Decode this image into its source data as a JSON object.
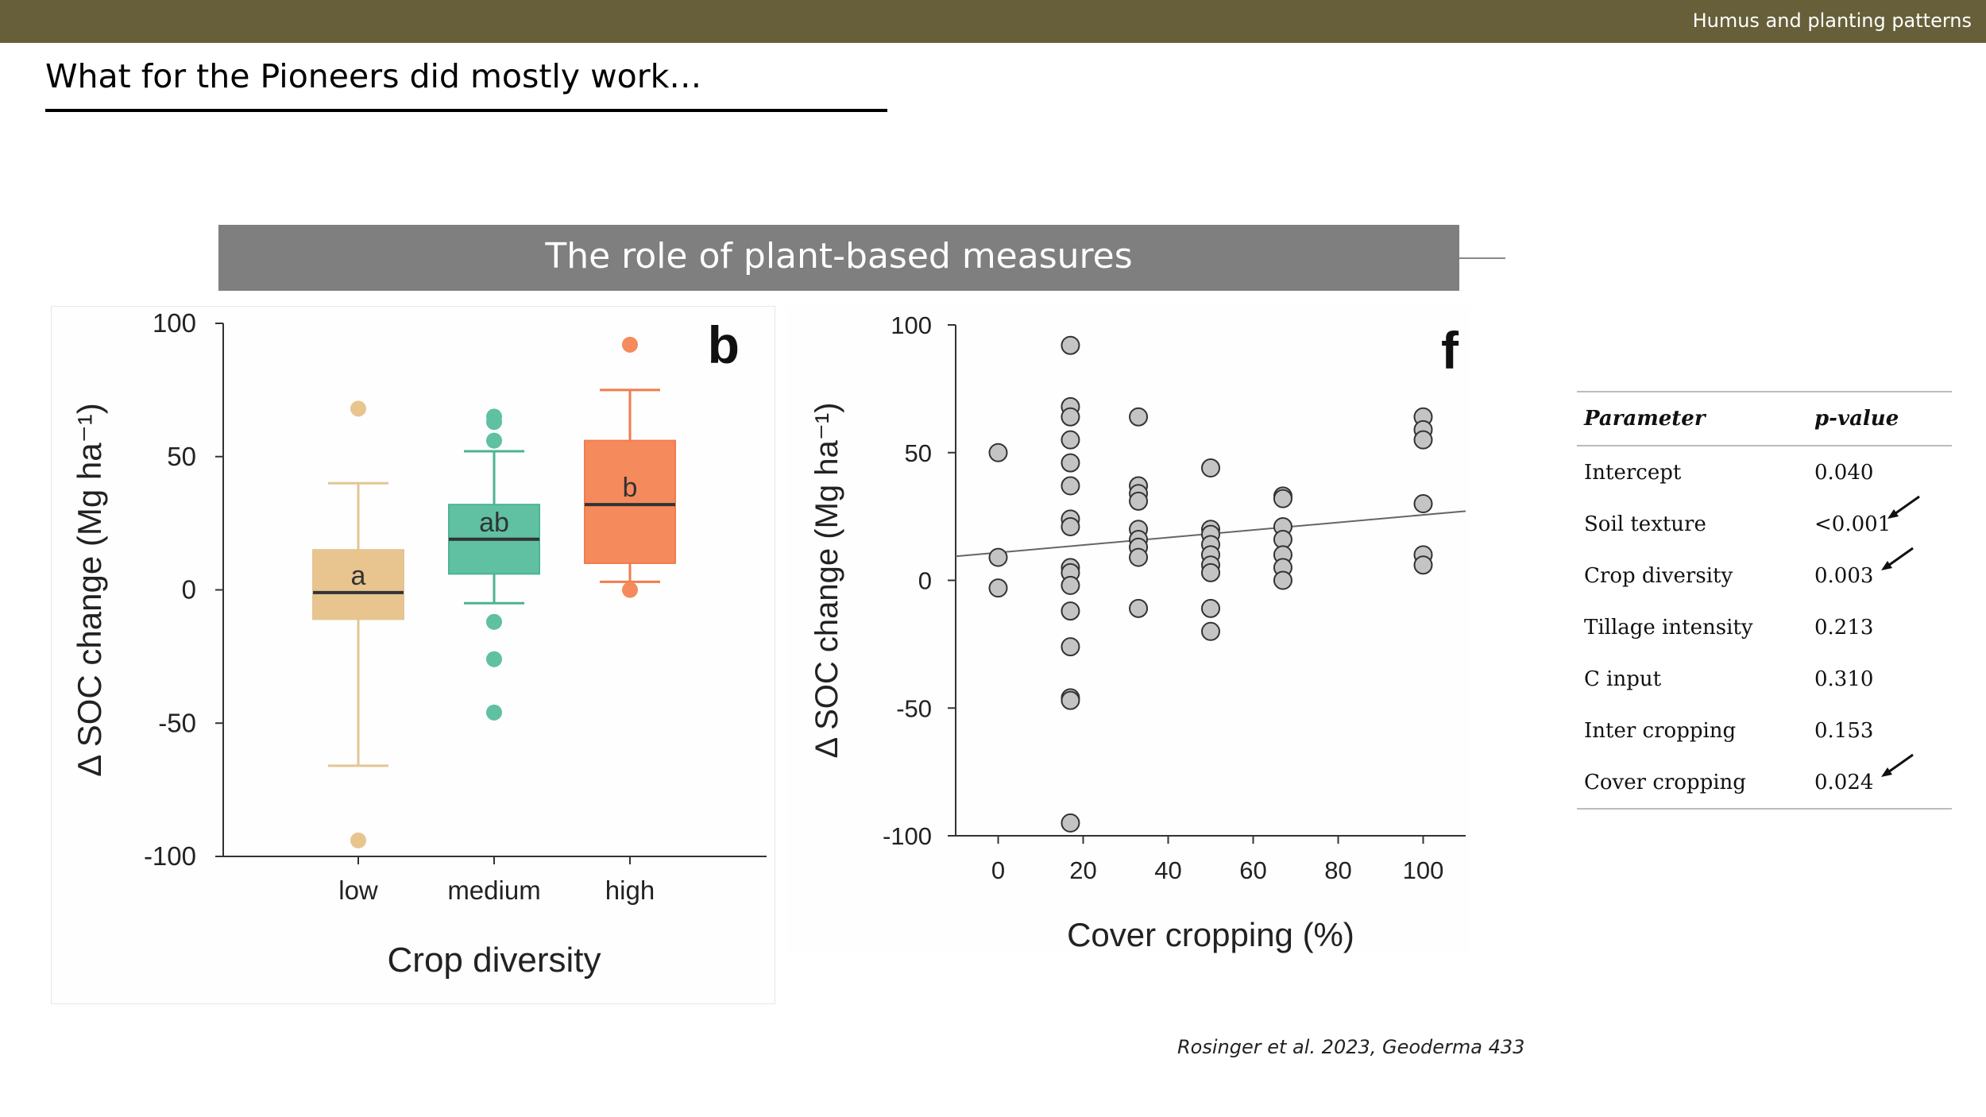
{
  "header": {
    "section_title": "Humus and planting patterns"
  },
  "slide": {
    "heading": "What for the Pioneers did mostly work…",
    "banner": "The role of plant-based measures",
    "citation": "Rosinger et al. 2023, Geoderma 433"
  },
  "colors": {
    "topbar": "#675f39",
    "banner": "#7f7f7f",
    "low": "#e8c48f",
    "medium": "#5fc0a2",
    "high": "#f58a5c",
    "points": "#c4c4c4"
  },
  "chart_data": [
    {
      "type": "boxplot",
      "panel_label": "b",
      "xlabel": "Crop diversity",
      "ylabel": "Δ SOC change (Mg ha⁻¹)",
      "ylim": [
        -100,
        100
      ],
      "yticks": [
        100,
        50,
        0,
        -50,
        -100
      ],
      "categories": [
        "low",
        "medium",
        "high"
      ],
      "boxes": [
        {
          "category": "low",
          "q1": -11,
          "median": -1,
          "q3": 15,
          "whisker_low": -66,
          "whisker_high": 40,
          "outliers": [
            68,
            -94
          ],
          "letter": "a",
          "color": "#e8c48f",
          "median_color": "#333333",
          "whisker_color": "#e3c594"
        },
        {
          "category": "medium",
          "q1": 6,
          "median": 19,
          "q3": 32,
          "whisker_low": -5,
          "whisker_high": 52,
          "outliers": [
            65,
            63,
            56,
            -12,
            -26,
            -46
          ],
          "letter": "ab",
          "color": "#5fc0a2",
          "median_color": "#333333",
          "whisker_color": "#4db393"
        },
        {
          "category": "high",
          "q1": 10,
          "median": 32,
          "q3": 56,
          "whisker_low": 3,
          "whisker_high": 75,
          "outliers": [
            92,
            0
          ],
          "letter": "b",
          "color": "#f58a5c",
          "median_color": "#333333",
          "whisker_color": "#f07c4e"
        }
      ]
    },
    {
      "type": "scatter",
      "panel_label": "f",
      "xlabel": "Cover cropping (%)",
      "ylabel": "Δ SOC change (Mg ha⁻¹)",
      "xlim": [
        -10,
        110
      ],
      "ylim": [
        -100,
        100
      ],
      "xticks": [
        0,
        20,
        40,
        60,
        80,
        100
      ],
      "yticks": [
        100,
        50,
        0,
        -50,
        -100
      ],
      "points": [
        [
          0,
          50
        ],
        [
          0,
          9
        ],
        [
          0,
          -3
        ],
        [
          17,
          92
        ],
        [
          17,
          68
        ],
        [
          17,
          64
        ],
        [
          17,
          55
        ],
        [
          17,
          46
        ],
        [
          17,
          37
        ],
        [
          17,
          24
        ],
        [
          17,
          21
        ],
        [
          17,
          5
        ],
        [
          17,
          3
        ],
        [
          17,
          -2
        ],
        [
          17,
          -12
        ],
        [
          17,
          -26
        ],
        [
          17,
          -46
        ],
        [
          17,
          -47
        ],
        [
          17,
          -95
        ],
        [
          33,
          64
        ],
        [
          33,
          37
        ],
        [
          33,
          34
        ],
        [
          33,
          31
        ],
        [
          33,
          20
        ],
        [
          33,
          16
        ],
        [
          33,
          13
        ],
        [
          33,
          9
        ],
        [
          33,
          -11
        ],
        [
          50,
          44
        ],
        [
          50,
          20
        ],
        [
          50,
          18
        ],
        [
          50,
          14
        ],
        [
          50,
          10
        ],
        [
          50,
          6
        ],
        [
          50,
          3
        ],
        [
          50,
          -11
        ],
        [
          50,
          -20
        ],
        [
          67,
          33
        ],
        [
          67,
          32
        ],
        [
          67,
          21
        ],
        [
          67,
          16
        ],
        [
          67,
          10
        ],
        [
          67,
          5
        ],
        [
          67,
          0
        ],
        [
          100,
          64
        ],
        [
          100,
          59
        ],
        [
          100,
          55
        ],
        [
          100,
          30
        ],
        [
          100,
          10
        ],
        [
          100,
          6
        ]
      ],
      "trend_line": {
        "x": [
          -10,
          110
        ],
        "y": [
          9.4,
          27.1
        ]
      }
    }
  ],
  "table": {
    "headers": {
      "parameter": "Parameter",
      "pvalue": "p-value"
    },
    "rows": [
      {
        "parameter": "Intercept",
        "pvalue": "0.040",
        "arrow": false
      },
      {
        "parameter": "Soil texture",
        "pvalue": "<0.001",
        "arrow": true
      },
      {
        "parameter": "Crop diversity",
        "pvalue": "0.003",
        "arrow": true
      },
      {
        "parameter": "Tillage intensity",
        "pvalue": "0.213",
        "arrow": false
      },
      {
        "parameter": "C input",
        "pvalue": "0.310",
        "arrow": false
      },
      {
        "parameter": "Inter cropping",
        "pvalue": "0.153",
        "arrow": false
      },
      {
        "parameter": "Cover cropping",
        "pvalue": "0.024",
        "arrow": true
      }
    ]
  }
}
